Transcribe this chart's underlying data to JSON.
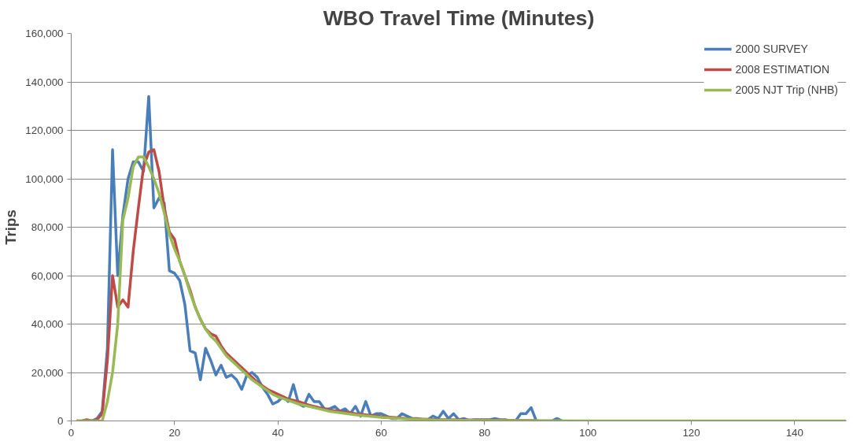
{
  "chart_data": {
    "type": "line",
    "title": "WBO Travel Time (Minutes)",
    "ylabel": "Trips",
    "xlim": [
      0,
      150
    ],
    "xticks": [
      0,
      20,
      40,
      60,
      80,
      100,
      120,
      140
    ],
    "ylim": [
      0,
      160000
    ],
    "yticks": [
      {
        "value": 0,
        "label": "0"
      },
      {
        "value": 20000,
        "label": "20,000"
      },
      {
        "value": 40000,
        "label": "40,000"
      },
      {
        "value": 60000,
        "label": "60,000"
      },
      {
        "value": 80000,
        "label": "80,000"
      },
      {
        "value": 100000,
        "label": "100,000"
      },
      {
        "value": 120000,
        "label": "120,000"
      },
      {
        "value": 140000,
        "label": "140,000"
      },
      {
        "value": 160000,
        "label": "160,000"
      }
    ],
    "grid": "y",
    "legend": "top right",
    "marker": "none",
    "line_style": "solid",
    "series": [
      {
        "name": "2000 SURVEY",
        "color": "#4a7ebb",
        "x": [
          3,
          4,
          5,
          6,
          7,
          8,
          9,
          10,
          11,
          12,
          13,
          14,
          15,
          16,
          17,
          18,
          19,
          20,
          21,
          22,
          23,
          24,
          25,
          26,
          27,
          28,
          29,
          30,
          31,
          32,
          33,
          34,
          35,
          36,
          37,
          38,
          39,
          40,
          41,
          42,
          43,
          44,
          45,
          46,
          47,
          48,
          49,
          50,
          51,
          52,
          53,
          54,
          55,
          56,
          57,
          58,
          59,
          60,
          61,
          62,
          63,
          64,
          65,
          66,
          67,
          68,
          69,
          70,
          71,
          72,
          73,
          74,
          75,
          76,
          77,
          78,
          79,
          80,
          81,
          82,
          83,
          84,
          85,
          86,
          87,
          88,
          89,
          90,
          91,
          92,
          93,
          94,
          95
        ],
        "values": [
          0,
          0,
          1000,
          4000,
          30000,
          112000,
          60000,
          85000,
          100000,
          107000,
          107000,
          103000,
          134000,
          88000,
          92000,
          90000,
          62000,
          61000,
          58000,
          48000,
          29000,
          28000,
          17000,
          30000,
          25000,
          19000,
          23000,
          18000,
          19000,
          17000,
          13000,
          19000,
          20000,
          18000,
          14000,
          11000,
          7000,
          8000,
          10000,
          8000,
          15000,
          7000,
          6000,
          11000,
          8000,
          8000,
          5000,
          5000,
          6000,
          4000,
          5000,
          3000,
          6000,
          2000,
          8000,
          2000,
          3000,
          3000,
          2000,
          1000,
          1000,
          3000,
          2000,
          1000,
          1000,
          500,
          500,
          2000,
          1000,
          4000,
          1000,
          3000,
          500,
          1000,
          200,
          500,
          500,
          500,
          500,
          1000,
          500,
          500,
          0,
          0,
          3000,
          3000,
          5500,
          0,
          0,
          0,
          0,
          1000,
          0
        ]
      },
      {
        "name": "2008 ESTIMATION",
        "color": "#be4b48",
        "x": [
          1,
          2,
          3,
          4,
          5,
          6,
          7,
          8,
          9,
          10,
          11,
          12,
          13,
          14,
          15,
          16,
          17,
          18,
          19,
          20,
          21,
          22,
          23,
          24,
          25,
          26,
          27,
          28,
          29,
          30,
          31,
          32,
          33,
          34,
          35,
          36,
          37,
          38,
          39,
          40,
          42,
          44,
          46,
          48,
          50,
          55,
          60,
          65,
          70,
          80,
          90
        ],
        "values": [
          0,
          0,
          500,
          0,
          500,
          3000,
          25000,
          60000,
          47000,
          50000,
          47000,
          70000,
          88000,
          105000,
          111000,
          112000,
          103000,
          88000,
          78000,
          75000,
          66000,
          60000,
          54000,
          47000,
          42000,
          38000,
          36000,
          35000,
          31000,
          28000,
          26000,
          24000,
          22000,
          20000,
          18000,
          16000,
          14500,
          13000,
          12000,
          11000,
          9000,
          8000,
          6500,
          5500,
          4500,
          3000,
          1800,
          1000,
          600,
          300,
          200
        ]
      },
      {
        "name": "2005 NJT Trip (NHB)",
        "color": "#98b954",
        "x": [
          1,
          5,
          6,
          7,
          8,
          9,
          10,
          11,
          12,
          13,
          14,
          15,
          16,
          17,
          18,
          19,
          20,
          21,
          22,
          23,
          24,
          25,
          26,
          27,
          28,
          29,
          30,
          31,
          32,
          33,
          34,
          35,
          36,
          37,
          38,
          39,
          40,
          42,
          44,
          46,
          48,
          50,
          55,
          60,
          65,
          70,
          80,
          90,
          100,
          150
        ],
        "values": [
          0,
          0,
          0,
          8000,
          20000,
          40000,
          83000,
          92000,
          105000,
          109000,
          109000,
          105000,
          100000,
          94000,
          86000,
          77000,
          71000,
          66000,
          60000,
          53000,
          47000,
          42000,
          38000,
          35000,
          33000,
          30000,
          27000,
          25000,
          23000,
          21000,
          19000,
          17000,
          15500,
          14000,
          12500,
          11000,
          10000,
          8500,
          7000,
          6000,
          5000,
          4000,
          2500,
          1500,
          800,
          400,
          200,
          100,
          0,
          0
        ]
      }
    ]
  }
}
